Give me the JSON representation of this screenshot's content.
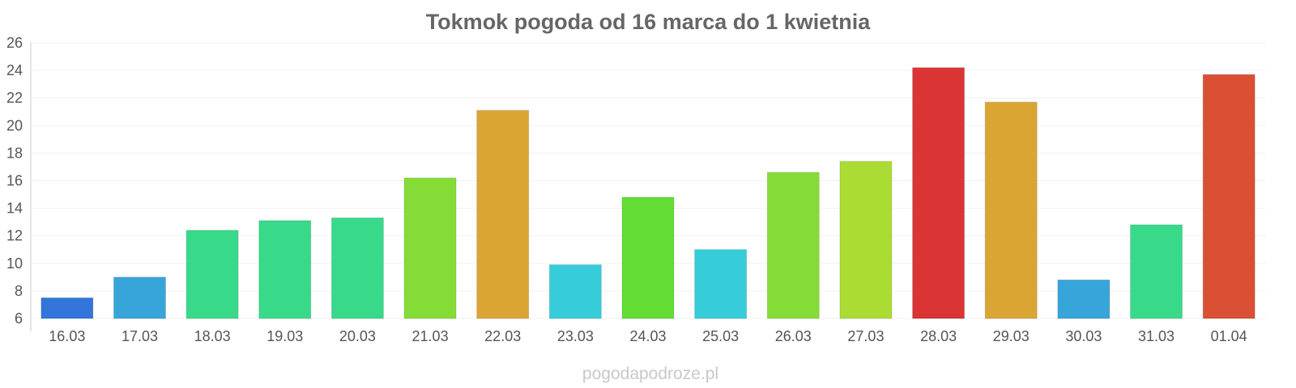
{
  "chart_data": {
    "type": "bar",
    "title": "Tokmok pogoda od 16 marca do 1 kwietnia",
    "xlabel": "",
    "ylabel": "",
    "ylim": [
      6,
      26
    ],
    "yticks": [
      6,
      8,
      10,
      12,
      14,
      16,
      18,
      20,
      22,
      24,
      26
    ],
    "grid": true,
    "legend": "none",
    "categories": [
      "16.03",
      "17.03",
      "18.03",
      "19.03",
      "20.03",
      "21.03",
      "22.03",
      "23.03",
      "24.03",
      "25.03",
      "26.03",
      "27.03",
      "28.03",
      "29.03",
      "30.03",
      "31.03",
      "01.04"
    ],
    "values": [
      7.5,
      9.0,
      12.4,
      13.1,
      13.3,
      16.2,
      21.1,
      9.9,
      14.8,
      11.0,
      16.6,
      17.4,
      24.2,
      21.7,
      8.8,
      12.8,
      23.7
    ],
    "colors": [
      "#3375db",
      "#37a5da",
      "#38da8a",
      "#38da8a",
      "#38da8a",
      "#86dc36",
      "#dba534",
      "#37ccd9",
      "#64dc36",
      "#37ccd9",
      "#86dc36",
      "#abdc34",
      "#da3434",
      "#dba534",
      "#37a5da",
      "#38da8a",
      "#da5034"
    ]
  },
  "watermark": "pogodapodroze.pl"
}
